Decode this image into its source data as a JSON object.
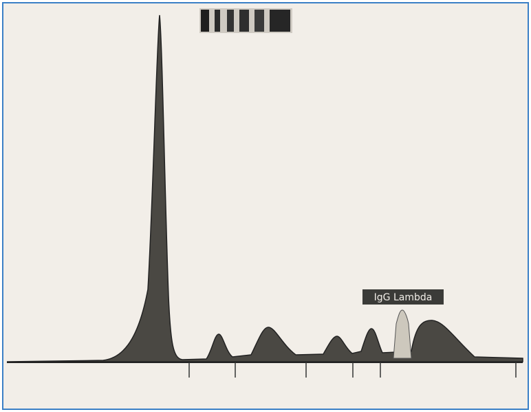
{
  "annotation": {
    "label": "IgG Lambda"
  }
}
